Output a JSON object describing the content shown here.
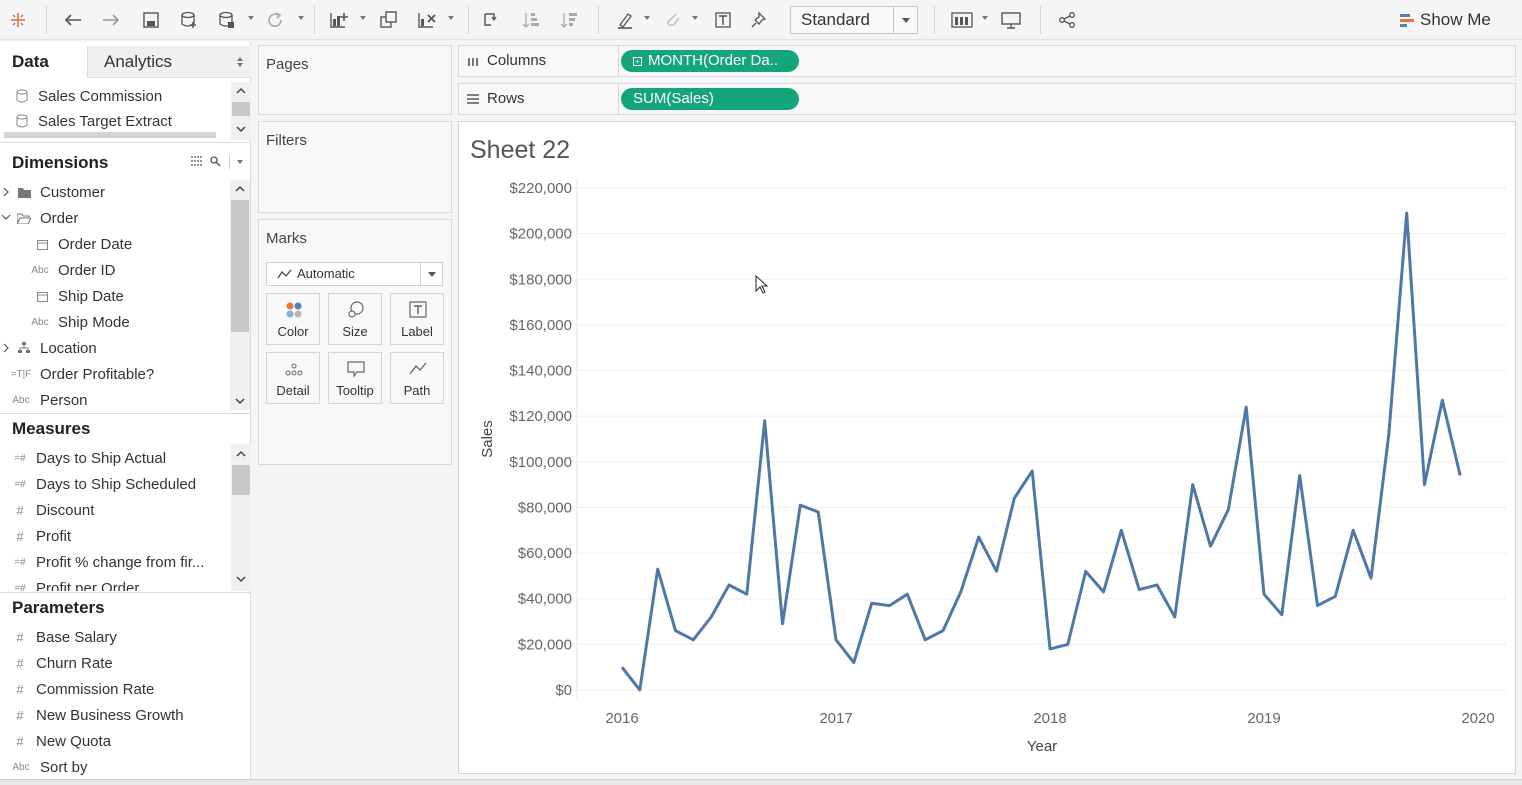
{
  "toolbar": {
    "icons": [
      "tableau-logo-icon",
      "undo-icon",
      "redo-icon",
      "save-icon",
      "new-datasource-icon",
      "datasource-refresh-icon",
      "refresh-icon",
      "new-worksheet-icon",
      "duplicate-sheet-icon",
      "clear-sheet-icon",
      "swap-icon",
      "sort-ascending-icon",
      "sort-descending-icon",
      "highlight-icon",
      "group-icon",
      "label-icon",
      "pin-icon",
      "show-cards-icon",
      "presentation-icon",
      "share-icon"
    ],
    "fit_select": "Standard",
    "show_me_label": "Show Me"
  },
  "left_pane": {
    "tabs": {
      "data": "Data",
      "analytics": "Analytics"
    },
    "datasources": [
      "Sales Commission",
      "Sales Target Extract"
    ],
    "dimensions_title": "Dimensions",
    "dimensions": [
      {
        "label": "Customer",
        "icon": "folder-icon"
      },
      {
        "label": "Order",
        "icon": "folder-open-icon"
      },
      {
        "label": "Order Date",
        "icon": "date-icon"
      },
      {
        "label": "Order ID",
        "icon": "abc-icon"
      },
      {
        "label": "Ship Date",
        "icon": "date-icon"
      },
      {
        "label": "Ship Mode",
        "icon": "abc-icon"
      },
      {
        "label": "Location",
        "icon": "hierarchy-icon"
      },
      {
        "label": "Order Profitable?",
        "icon": "boolean-icon"
      },
      {
        "label": "Person",
        "icon": "abc-icon"
      }
    ],
    "measures_title": "Measures",
    "measures": [
      {
        "label": "Days to Ship Actual"
      },
      {
        "label": "Days to Ship Scheduled"
      },
      {
        "label": "Discount"
      },
      {
        "label": "Profit"
      },
      {
        "label": "Profit % change from fir..."
      },
      {
        "label": "Profit per Order"
      }
    ],
    "parameters_title": "Parameters",
    "parameters": [
      {
        "label": "Base Salary"
      },
      {
        "label": "Churn Rate"
      },
      {
        "label": "Commission Rate"
      },
      {
        "label": "New Business Growth"
      },
      {
        "label": "New Quota"
      },
      {
        "label": "Sort by"
      }
    ]
  },
  "cards": {
    "pages": "Pages",
    "filters": "Filters",
    "marks": "Marks",
    "mark_type": "Automatic",
    "mark_buttons": [
      "Color",
      "Size",
      "Label",
      "Detail",
      "Tooltip",
      "Path"
    ]
  },
  "shelves": {
    "columns_label": "Columns",
    "columns_pill": "MONTH(Order Da..",
    "rows_label": "Rows",
    "rows_pill": "SUM(Sales)"
  },
  "sheet": {
    "title": "Sheet 22"
  },
  "chart_data": {
    "type": "line",
    "title": "",
    "xlabel": "Year",
    "ylabel": "Sales",
    "x_ticks": [
      "2016",
      "2017",
      "2018",
      "2019",
      "2020"
    ],
    "y_ticks": [
      "$0",
      "$20,000",
      "$40,000",
      "$60,000",
      "$80,000",
      "$100,000",
      "$120,000",
      "$140,000",
      "$160,000",
      "$180,000",
      "$200,000",
      "$220,000"
    ],
    "ylim": [
      0,
      220000
    ],
    "xlim": [
      "2016-01",
      "2020-01"
    ],
    "line_color": "#4e79a7",
    "grid": true,
    "series": [
      {
        "x": [
          "2016-01",
          "2016-02",
          "2016-03",
          "2016-04",
          "2016-05",
          "2016-06",
          "2016-07",
          "2016-08",
          "2016-09",
          "2016-10",
          "2016-11",
          "2016-12",
          "2017-01",
          "2017-02",
          "2017-03",
          "2017-04",
          "2017-05",
          "2017-06",
          "2017-07",
          "2017-08",
          "2017-09",
          "2017-10",
          "2017-11",
          "2017-12",
          "2018-01",
          "2018-02",
          "2018-03",
          "2018-04",
          "2018-05",
          "2018-06",
          "2018-07",
          "2018-08",
          "2018-09",
          "2018-10",
          "2018-11",
          "2018-12",
          "2019-01",
          "2019-02",
          "2019-03",
          "2019-04",
          "2019-05",
          "2019-06",
          "2019-07",
          "2019-08",
          "2019-09",
          "2019-10",
          "2019-11",
          "2019-12"
        ],
        "values": [
          10000,
          0,
          53000,
          26000,
          22000,
          32000,
          46000,
          42000,
          118000,
          29000,
          81000,
          78000,
          22000,
          12000,
          38000,
          37000,
          42000,
          22000,
          26000,
          43000,
          67000,
          52000,
          84000,
          96000,
          18000,
          20000,
          52000,
          43000,
          70000,
          44000,
          46000,
          32000,
          90000,
          63000,
          79000,
          124000,
          42000,
          33000,
          94000,
          37000,
          41000,
          70000,
          49000,
          112000,
          209000,
          90000,
          127000,
          94000
        ]
      }
    ]
  }
}
